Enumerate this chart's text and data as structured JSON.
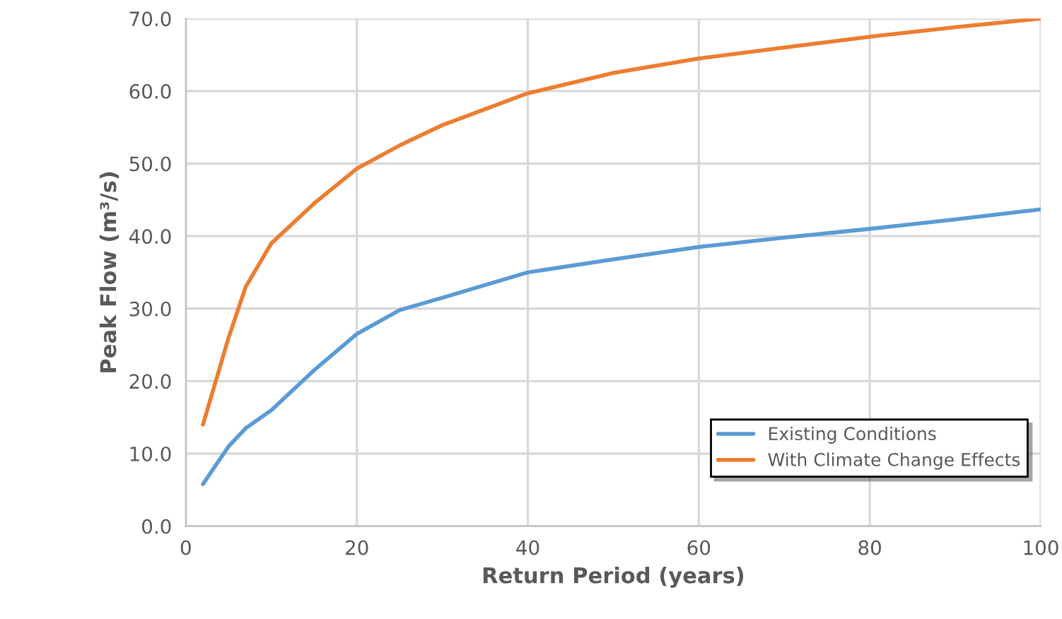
{
  "chart_data": {
    "type": "line",
    "xlabel": "Return Period (years)",
    "ylabel": "Peak Flow (m³/s)",
    "xlim": [
      0,
      100
    ],
    "xticks": [
      0,
      20,
      40,
      60,
      80,
      100
    ],
    "ylim": [
      0,
      70
    ],
    "yticks": [
      {
        "value": 0,
        "label": "0.0"
      },
      {
        "value": 10,
        "label": "10.0"
      },
      {
        "value": 20,
        "label": "20.0"
      },
      {
        "value": 30,
        "label": "30.0"
      },
      {
        "value": 40,
        "label": "40.0"
      },
      {
        "value": 50,
        "label": "50.0"
      },
      {
        "value": 60,
        "label": "60.0"
      },
      {
        "value": 70,
        "label": "70.0"
      }
    ],
    "grid": true,
    "legend": "bottom right",
    "marker": "none",
    "line_style": "solid",
    "x": [
      2,
      5,
      7,
      10,
      15,
      20,
      25,
      30,
      40,
      50,
      60,
      70,
      80,
      90,
      100
    ],
    "series": [
      {
        "name": "Existing Conditions",
        "color": "#5b9bd5",
        "values": [
          5.8,
          11,
          13.5,
          16,
          21.5,
          26.5,
          29.8,
          31.5,
          35,
          36.8,
          38.5,
          39.8,
          41,
          42.3,
          43.7
        ]
      },
      {
        "name": "With Climate Change Effects",
        "color": "#ed7d31",
        "values": [
          14,
          26,
          33,
          39,
          44.5,
          49.3,
          52.5,
          55.3,
          59.7,
          62.5,
          64.5,
          66,
          67.5,
          68.8,
          70
        ]
      }
    ]
  }
}
